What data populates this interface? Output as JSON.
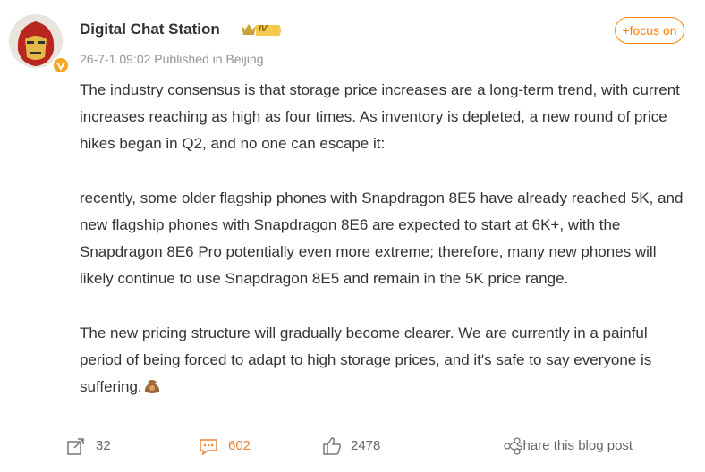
{
  "post": {
    "author": "Digital Chat Station",
    "badge": "IV",
    "follow_button": "+focus on",
    "meta": "26-7-1 09:02 Published in Beijing",
    "paragraphs": [
      "The industry consensus is that storage price increases are a long-term trend, with current increases reaching as high as four times. As inventory is depleted, a new round of price hikes began in Q2, and no one can escape it:",
      "recently, some older flagship phones with Snapdragon 8E5 have already reached 5K, and new flagship phones with Snapdragon 8E6 are expected to start at 6K+, with the Snapdragon 8E6 Pro potentially even more extreme; therefore, many new phones will likely continue to use Snapdragon 8E5 and remain in the 5K price range.",
      "The new pricing structure will gradually become clearer. We are currently in a painful period of being forced to adapt to high storage prices, and it's safe to say everyone is suffering."
    ],
    "actions": {
      "reposts": 32,
      "comments": 602,
      "likes": 2478,
      "share": "share this blog post"
    }
  }
}
